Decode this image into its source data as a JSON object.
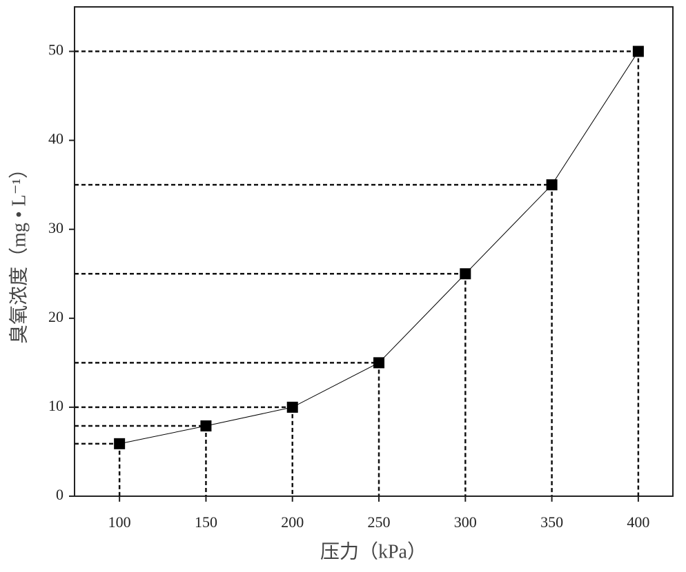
{
  "chart_data": {
    "type": "line",
    "x_label": "压力（kPa）",
    "y_label": "臭氧浓度（mg • L⁻¹）",
    "x": [
      100,
      150,
      200,
      250,
      300,
      350,
      400
    ],
    "series": [
      {
        "name": "臭氧浓度",
        "color": "#000000",
        "values": [
          5.9,
          7.9,
          10,
          15,
          25,
          35,
          50
        ]
      }
    ],
    "xlim": [
      74,
      420
    ],
    "ylim": [
      0,
      55
    ],
    "xticks": [
      100,
      150,
      200,
      250,
      300,
      350,
      400
    ],
    "yticks": [
      0,
      10,
      20,
      30,
      40,
      50
    ],
    "drop_lines": true
  }
}
